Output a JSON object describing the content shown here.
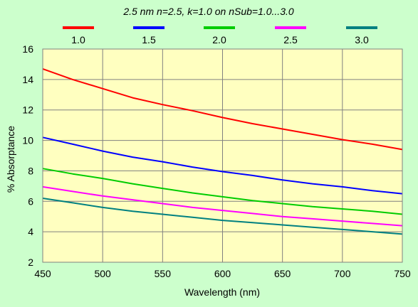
{
  "chart_data": {
    "type": "line",
    "title": "2.5 nm n=2.5, k=1.0 on nSub=1.0...3.0",
    "xlabel": "Wavelength (nm)",
    "ylabel": "% Absorptance",
    "xlim": [
      450,
      750
    ],
    "ylim": [
      2,
      16
    ],
    "x_ticks": [
      450,
      500,
      550,
      600,
      650,
      700,
      750
    ],
    "y_ticks": [
      2,
      4,
      6,
      8,
      10,
      12,
      14,
      16
    ],
    "grid": true,
    "legend_position": "top",
    "colors": {
      "plot_background": "#ffffc0",
      "page_background": "#ccffcc",
      "grid": "#808080"
    },
    "series": [
      {
        "name": "1.0",
        "color": "#ff0000",
        "x": [
          450,
          475,
          500,
          525,
          550,
          575,
          600,
          625,
          650,
          675,
          700,
          725,
          750
        ],
        "y": [
          14.7,
          14.0,
          13.4,
          12.8,
          12.35,
          11.95,
          11.5,
          11.1,
          10.75,
          10.4,
          10.05,
          9.75,
          9.4
        ]
      },
      {
        "name": "1.5",
        "color": "#0000ff",
        "x": [
          450,
          475,
          500,
          525,
          550,
          575,
          600,
          625,
          650,
          675,
          700,
          725,
          750
        ],
        "y": [
          10.2,
          9.75,
          9.3,
          8.9,
          8.6,
          8.25,
          7.95,
          7.7,
          7.4,
          7.15,
          6.95,
          6.7,
          6.5
        ]
      },
      {
        "name": "2.0",
        "color": "#00cc00",
        "x": [
          450,
          475,
          500,
          525,
          550,
          575,
          600,
          625,
          650,
          675,
          700,
          725,
          750
        ],
        "y": [
          8.15,
          7.8,
          7.5,
          7.15,
          6.85,
          6.55,
          6.3,
          6.05,
          5.85,
          5.65,
          5.5,
          5.35,
          5.15
        ]
      },
      {
        "name": "2.5",
        "color": "#ff00ff",
        "x": [
          450,
          475,
          500,
          525,
          550,
          575,
          600,
          625,
          650,
          675,
          700,
          725,
          750
        ],
        "y": [
          6.95,
          6.65,
          6.35,
          6.1,
          5.85,
          5.6,
          5.4,
          5.2,
          5.0,
          4.85,
          4.7,
          4.55,
          4.4
        ]
      },
      {
        "name": "3.0",
        "color": "#008080",
        "x": [
          450,
          475,
          500,
          525,
          550,
          575,
          600,
          625,
          650,
          675,
          700,
          725,
          750
        ],
        "y": [
          6.2,
          5.9,
          5.6,
          5.35,
          5.15,
          4.95,
          4.75,
          4.6,
          4.45,
          4.3,
          4.15,
          4.0,
          3.85
        ]
      }
    ]
  }
}
